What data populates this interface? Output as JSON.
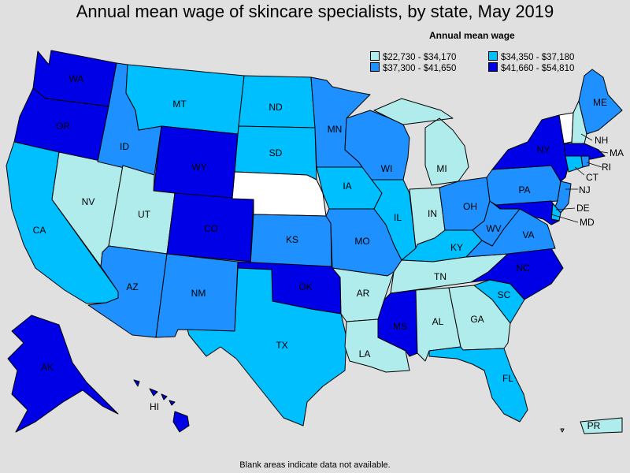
{
  "title": "Annual mean wage of skincare specialists, by state, May 2019",
  "legend": {
    "title": "Annual mean wage",
    "items": [
      {
        "label": "$22,730 - $34,170",
        "color": "#b0ecec"
      },
      {
        "label": "$34,350 - $37,180",
        "color": "#00bfff"
      },
      {
        "label": "$37,300 - $41,650",
        "color": "#1e90ff"
      },
      {
        "label": "$41,660 - $54,810",
        "color": "#0000e6"
      }
    ]
  },
  "no_data_color": "#ffffff",
  "footnote": "Blank areas indicate data not available.",
  "states": {
    "WA": 3,
    "OR": 3,
    "CA": 1,
    "NV": 0,
    "ID": 2,
    "MT": 1,
    "WY": 3,
    "UT": 0,
    "AZ": 2,
    "CO": 3,
    "NM": 2,
    "ND": 1,
    "SD": 1,
    "NE": -1,
    "KS": 2,
    "OK": 3,
    "TX": 1,
    "MN": 2,
    "IA": 1,
    "MO": 2,
    "AR": 0,
    "LA": 0,
    "WI": 2,
    "IL": 1,
    "MI": 0,
    "IN": 0,
    "OH": 2,
    "KY": 1,
    "TN": 0,
    "MS": 3,
    "AL": 0,
    "GA": 0,
    "FL": 1,
    "SC": 1,
    "NC": 3,
    "VA": 2,
    "WV": 2,
    "PA": 2,
    "NY": 3,
    "VT": -1,
    "NH": 0,
    "ME": 2,
    "MA": 3,
    "RI": 2,
    "CT": 1,
    "NJ": 2,
    "DE": 1,
    "MD": 3,
    "AK": 3,
    "HI": 3,
    "PR": 0
  }
}
